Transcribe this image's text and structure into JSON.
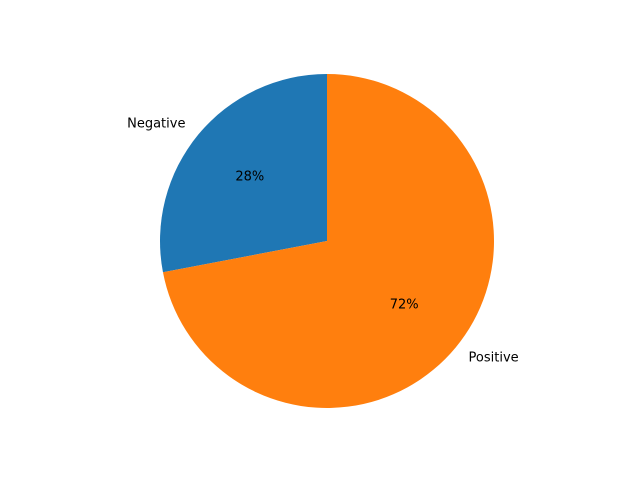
{
  "chart_data": {
    "type": "pie",
    "title": "",
    "labels": [
      "Negative",
      "Positive"
    ],
    "values": [
      28,
      72
    ],
    "value_labels": [
      "28%",
      "72%"
    ],
    "colors": [
      "#1f77b4",
      "#ff7f0e"
    ],
    "start_angle_deg": 90,
    "direction": "counterclockwise",
    "legend": "none"
  }
}
